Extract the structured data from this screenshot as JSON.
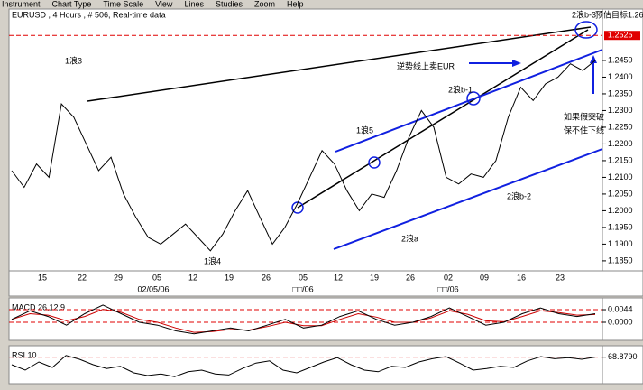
{
  "menu": {
    "items": [
      "Instrument",
      "Chart Type",
      "Time Scale",
      "View",
      "Lines",
      "Studies",
      "Zoom",
      "Help"
    ]
  },
  "chart_data": [
    {
      "type": "line",
      "title": "EURUSD , 4 Hours , # 506, Real-time data",
      "color": "#000000",
      "values": [
        1.212,
        1.207,
        1.214,
        1.21,
        1.232,
        1.228,
        1.22,
        1.212,
        1.216,
        1.205,
        1.198,
        1.192,
        1.19,
        1.193,
        1.196,
        1.192,
        1.188,
        1.193,
        1.2,
        1.206,
        1.198,
        1.19,
        1.195,
        1.202,
        1.21,
        1.218,
        1.214,
        1.206,
        1.2,
        1.205,
        1.204,
        1.212,
        1.222,
        1.23,
        1.225,
        1.21,
        1.208,
        1.211,
        1.21,
        1.215,
        1.228,
        1.237,
        1.233,
        1.238,
        1.24,
        1.244,
        1.242,
        1.245
      ],
      "ylim": [
        1.182,
        1.2604
      ],
      "yticks": [
        {
          "value": 1.245,
          "label": "1.2450"
        },
        {
          "value": 1.24,
          "label": "1.2400"
        },
        {
          "value": 1.235,
          "label": "1.2350"
        },
        {
          "value": 1.23,
          "label": "1.2300"
        },
        {
          "value": 1.225,
          "label": "1.2250"
        },
        {
          "value": 1.22,
          "label": "1.2200"
        },
        {
          "value": 1.215,
          "label": "1.2150"
        },
        {
          "value": 1.21,
          "label": "1.2100"
        },
        {
          "value": 1.205,
          "label": "1.2050"
        },
        {
          "value": 1.2,
          "label": "1.2000"
        },
        {
          "value": 1.195,
          "label": "1.1950"
        },
        {
          "value": 1.19,
          "label": "1.1900"
        },
        {
          "value": 1.185,
          "label": "1.1850"
        }
      ],
      "ref_level": {
        "value": 1.2525,
        "label": "1.2525",
        "color": "#e00000"
      },
      "x_tick_labels": [
        "15",
        "22",
        "29",
        "05",
        "12",
        "19",
        "26",
        "05",
        "12",
        "19",
        "26",
        "02",
        "09",
        "16",
        "23"
      ],
      "x_period_labels": [
        "02/05/06",
        "□□/06",
        "□□/06"
      ],
      "annotations": [
        "1浪3",
        "1浪5",
        "2浪b-1",
        "2浪b-2",
        "2浪a",
        "1浪4",
        "2浪b-3",
        "预估目标1.26",
        "逆势线上卖EUR",
        "如果假突破",
        "保不住下线"
      ]
    },
    {
      "type": "line",
      "title": "MACD 26,12,9",
      "color": "#000000",
      "signal_color": "#cc0000",
      "values": [
        0.001,
        0.004,
        0.002,
        -0.001,
        0.003,
        0.006,
        0.003,
        0.0,
        -0.001,
        -0.003,
        -0.004,
        -0.003,
        -0.002,
        -0.003,
        -0.001,
        0.001,
        -0.002,
        -0.001,
        0.002,
        0.004,
        0.001,
        -0.001,
        0.0,
        0.002,
        0.005,
        0.002,
        -0.001,
        0.0,
        0.003,
        0.005,
        0.003,
        0.002,
        0.003
      ],
      "signal_values": [
        0.001,
        0.003,
        0.0025,
        0.0005,
        0.002,
        0.0045,
        0.0035,
        0.001,
        0.0,
        -0.002,
        -0.0035,
        -0.0032,
        -0.0025,
        -0.0027,
        -0.0015,
        0.0,
        -0.0012,
        -0.0012,
        0.001,
        0.003,
        0.0018,
        0.0,
        0.0,
        0.0015,
        0.004,
        0.0028,
        0.0005,
        0.0002,
        0.002,
        0.004,
        0.0034,
        0.0025,
        0.0027
      ],
      "ylim": [
        -0.0063,
        0.0085
      ],
      "yticks": [
        {
          "value": 0.0044,
          "label": "0.0044"
        },
        {
          "value": 0,
          "label": "0.0000"
        }
      ]
    },
    {
      "type": "line",
      "title": "RSI 10",
      "color": "#000000",
      "values": [
        55,
        45,
        60,
        50,
        72,
        65,
        55,
        48,
        52,
        40,
        35,
        38,
        33,
        42,
        45,
        38,
        36,
        48,
        58,
        62,
        45,
        40,
        50,
        60,
        68,
        55,
        45,
        42,
        52,
        50,
        60,
        66,
        70,
        58,
        45,
        48,
        52,
        50,
        62,
        70,
        66,
        68,
        65,
        69
      ],
      "ylim": [
        20,
        90
      ],
      "yticks": [
        {
          "value": 68.879,
          "label": "68.8790"
        }
      ]
    }
  ]
}
